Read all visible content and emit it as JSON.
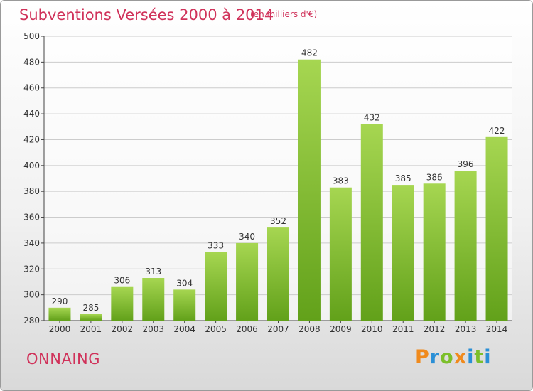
{
  "title": "Subventions Versées 2000 à 2014",
  "unit_note": "(en milliers d'€)",
  "commune": "ONNAING",
  "logo": {
    "letters": [
      "P",
      "r",
      "o",
      "x",
      "i",
      "t",
      "i"
    ],
    "colors": [
      "#f08a1c",
      "#2a8fd6",
      "#7cbf2a",
      "#f08a1c",
      "#2a8fd6",
      "#7cbf2a",
      "#2a8fd6"
    ]
  },
  "colors": {
    "title": "#d0325a",
    "bar_light": "#a6d651",
    "bar_dark": "#62a11a"
  },
  "chart_data": {
    "type": "bar",
    "title": "Subventions Versées 2000 à 2014",
    "xlabel": "",
    "ylabel": "",
    "categories": [
      "2000",
      "2001",
      "2002",
      "2003",
      "2004",
      "2005",
      "2006",
      "2007",
      "2008",
      "2009",
      "2010",
      "2011",
      "2012",
      "2013",
      "2014"
    ],
    "values": [
      290,
      285,
      306,
      313,
      304,
      333,
      340,
      352,
      482,
      383,
      432,
      385,
      386,
      396,
      422
    ],
    "ylim": [
      280,
      500
    ],
    "yticks": [
      280,
      300,
      320,
      340,
      360,
      380,
      400,
      420,
      440,
      460,
      480,
      500
    ],
    "grid": "horizontal",
    "data_labels": true
  }
}
